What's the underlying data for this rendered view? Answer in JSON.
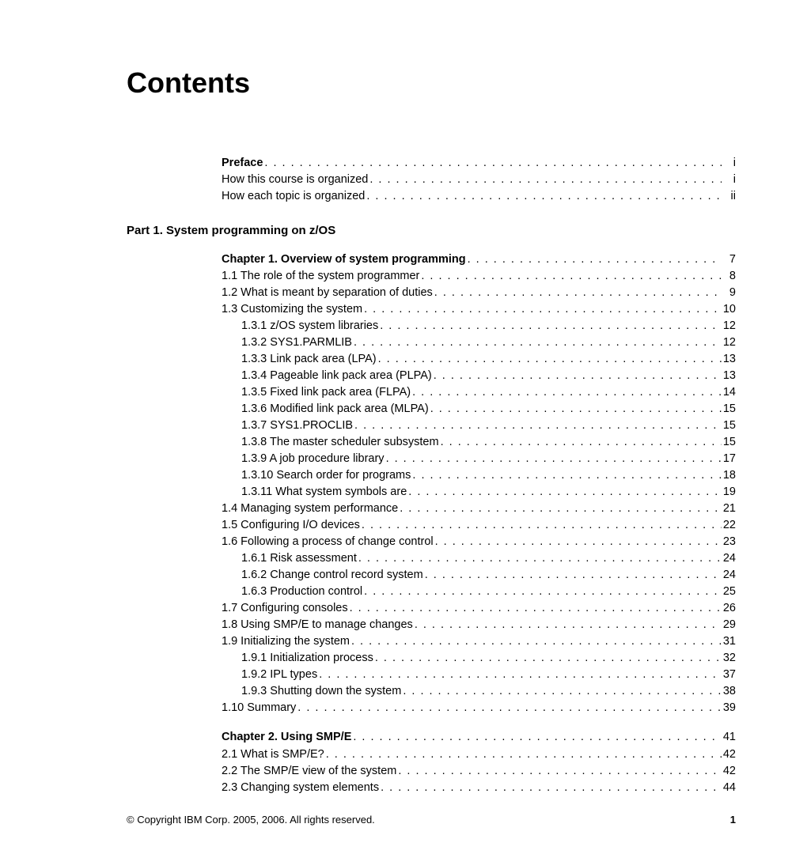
{
  "title": "Contents",
  "preface": {
    "heading": {
      "label": "Preface",
      "page": "i",
      "bold": true
    },
    "items": [
      {
        "label": "How this course is organized",
        "page": "i"
      },
      {
        "label": "How each topic is organized",
        "page": "ii"
      }
    ]
  },
  "part1": {
    "heading": "Part 1.  System programming on z/OS",
    "chapter1": {
      "heading": {
        "label": "Chapter 1.  Overview of system programming",
        "page": "7",
        "bold": true
      },
      "lvl1": [
        {
          "label": "1.1  The role of the system programmer",
          "page": "8"
        },
        {
          "label": "1.2  What is meant by separation of duties",
          "page": "9"
        },
        {
          "label": "1.3  Customizing the system",
          "page": "10"
        }
      ],
      "lvl2_13": [
        {
          "label": "1.3.1  z/OS system libraries",
          "page": "12"
        },
        {
          "label": "1.3.2  SYS1.PARMLIB",
          "page": "12"
        },
        {
          "label": "1.3.3  Link pack area (LPA)",
          "page": "13"
        },
        {
          "label": "1.3.4  Pageable link pack area (PLPA)",
          "page": "13"
        },
        {
          "label": "1.3.5  Fixed link pack area (FLPA)",
          "page": "14"
        },
        {
          "label": "1.3.6  Modified link pack area (MLPA)",
          "page": "15"
        },
        {
          "label": "1.3.7  SYS1.PROCLIB",
          "page": "15"
        },
        {
          "label": "1.3.8  The master scheduler subsystem",
          "page": "15"
        },
        {
          "label": "1.3.9  A job procedure library",
          "page": "17"
        },
        {
          "label": "1.3.10  Search order for programs",
          "page": "18"
        },
        {
          "label": "1.3.11  What system symbols are",
          "page": "19"
        }
      ],
      "lvl1b": [
        {
          "label": "1.4  Managing system performance",
          "page": "21"
        },
        {
          "label": "1.5  Configuring I/O devices",
          "page": "22"
        },
        {
          "label": "1.6  Following a process of change control",
          "page": "23"
        }
      ],
      "lvl2_16": [
        {
          "label": "1.6.1  Risk assessment",
          "page": "24"
        },
        {
          "label": "1.6.2  Change control record system",
          "page": "24"
        },
        {
          "label": "1.6.3  Production control",
          "page": "25"
        }
      ],
      "lvl1c": [
        {
          "label": "1.7  Configuring consoles",
          "page": "26"
        },
        {
          "label": "1.8  Using SMP/E to manage changes",
          "page": "29"
        },
        {
          "label": "1.9  Initializing the system",
          "page": "31"
        }
      ],
      "lvl2_19": [
        {
          "label": "1.9.1  Initialization process",
          "page": "32"
        },
        {
          "label": "1.9.2  IPL types",
          "page": "37"
        },
        {
          "label": "1.9.3  Shutting down the system",
          "page": "38"
        }
      ],
      "lvl1d": [
        {
          "label": "1.10  Summary",
          "page": "39"
        }
      ]
    },
    "chapter2": {
      "heading": {
        "label": "Chapter 2.  Using SMP/E",
        "page": "41",
        "bold": true
      },
      "lvl1": [
        {
          "label": "2.1  What is SMP/E?",
          "page": "42"
        },
        {
          "label": "2.2  The SMP/E view of the system",
          "page": "42"
        },
        {
          "label": "2.3  Changing system elements",
          "page": "44"
        }
      ]
    }
  },
  "footer": {
    "copyright": "© Copyright IBM Corp. 2005, 2006. All rights reserved.",
    "page": "1"
  }
}
